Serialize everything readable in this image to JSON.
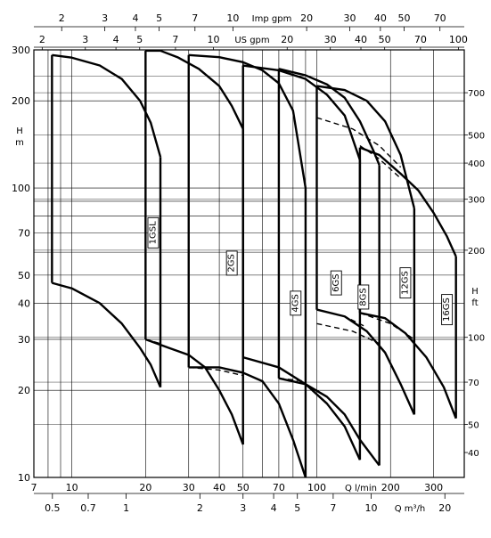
{
  "chart_data": {
    "type": "line",
    "title": "",
    "scale": "log-log",
    "grid": true,
    "left_axis": {
      "label_lines": [
        "H",
        "m"
      ],
      "range": [
        10,
        300
      ],
      "ticks": [
        {
          "v": 10,
          "t": "10"
        },
        {
          "v": 20,
          "t": "20"
        },
        {
          "v": 30,
          "t": "30"
        },
        {
          "v": 40,
          "t": "40"
        },
        {
          "v": 50,
          "t": "50"
        },
        {
          "v": 70,
          "t": "70"
        },
        {
          "v": 100,
          "t": "100"
        },
        {
          "v": 200,
          "t": "200"
        },
        {
          "v": 300,
          "t": "300"
        }
      ]
    },
    "right_axis": {
      "label_lines": [
        "H",
        "ft"
      ],
      "ticks": [
        {
          "v": 40,
          "t": "40"
        },
        {
          "v": 50,
          "t": "50"
        },
        {
          "v": 70,
          "t": "70"
        },
        {
          "v": 100,
          "t": "100"
        },
        {
          "v": 200,
          "t": "200"
        },
        {
          "v": 300,
          "t": "300"
        },
        {
          "v": 400,
          "t": "400"
        },
        {
          "v": 500,
          "t": "500"
        },
        {
          "v": 700,
          "t": "700"
        }
      ]
    },
    "bottom_axis": {
      "unit": "Q l/min",
      "range": [
        7,
        400
      ],
      "ticks": [
        {
          "v": 7,
          "t": "7"
        },
        {
          "v": 10,
          "t": "10"
        },
        {
          "v": 20,
          "t": "20"
        },
        {
          "v": 30,
          "t": "30"
        },
        {
          "v": 40,
          "t": "40"
        },
        {
          "v": 50,
          "t": "50"
        },
        {
          "v": 70,
          "t": "70"
        },
        {
          "v": 100,
          "t": "100"
        },
        {
          "v": 200,
          "t": "200"
        },
        {
          "v": 300,
          "t": "300"
        }
      ]
    },
    "bottom_axis_2": {
      "unit": "Q m³/h",
      "ticks": [
        {
          "v": 0.5,
          "t": "0.5"
        },
        {
          "v": 0.7,
          "t": "0.7"
        },
        {
          "v": 1,
          "t": "1"
        },
        {
          "v": 2,
          "t": "2"
        },
        {
          "v": 3,
          "t": "3"
        },
        {
          "v": 4,
          "t": "4"
        },
        {
          "v": 5,
          "t": "5"
        },
        {
          "v": 7,
          "t": "7"
        },
        {
          "v": 10,
          "t": "10"
        },
        {
          "v": 20,
          "t": "20"
        }
      ]
    },
    "top_axis_1": {
      "unit": "Imp gpm",
      "ticks": [
        {
          "v": 2,
          "t": "2"
        },
        {
          "v": 3,
          "t": "3"
        },
        {
          "v": 4,
          "t": "4"
        },
        {
          "v": 5,
          "t": "5"
        },
        {
          "v": 7,
          "t": "7"
        },
        {
          "v": 10,
          "t": "10"
        },
        {
          "v": 20,
          "t": "20"
        },
        {
          "v": 30,
          "t": "30"
        },
        {
          "v": 40,
          "t": "40"
        },
        {
          "v": 50,
          "t": "50"
        },
        {
          "v": 70,
          "t": "70"
        }
      ]
    },
    "top_axis_2": {
      "unit": "US gpm",
      "ticks": [
        {
          "v": 2,
          "t": "2"
        },
        {
          "v": 3,
          "t": "3"
        },
        {
          "v": 4,
          "t": "4"
        },
        {
          "v": 5,
          "t": "5"
        },
        {
          "v": 7,
          "t": "7"
        },
        {
          "v": 10,
          "t": "10"
        },
        {
          "v": 20,
          "t": "20"
        },
        {
          "v": 30,
          "t": "30"
        },
        {
          "v": 40,
          "t": "40"
        },
        {
          "v": 50,
          "t": "50"
        },
        {
          "v": 70,
          "t": "70"
        },
        {
          "v": 100,
          "t": "100"
        }
      ]
    },
    "series": [
      {
        "name": "1GSL",
        "q_min": 8.3,
        "q_max": 23,
        "upper": [
          [
            8.3,
            288
          ],
          [
            10,
            282
          ],
          [
            13,
            265
          ],
          [
            16,
            238
          ],
          [
            19,
            200
          ],
          [
            21,
            168
          ],
          [
            23,
            128
          ]
        ],
        "lower": [
          [
            8.3,
            47
          ],
          [
            10,
            45
          ],
          [
            13,
            40
          ],
          [
            16,
            34
          ],
          [
            19,
            28
          ],
          [
            21,
            24.5
          ],
          [
            23,
            20.5
          ]
        ]
      },
      {
        "name": "2GS",
        "q_min": 20,
        "q_max": 50,
        "upper": [
          [
            20,
            298
          ],
          [
            23,
            298
          ],
          [
            27,
            283
          ],
          [
            33,
            258
          ],
          [
            40,
            225
          ],
          [
            45,
            192
          ],
          [
            50,
            160
          ]
        ],
        "lower": [
          [
            20,
            30
          ],
          [
            25,
            28
          ],
          [
            30,
            26.5
          ],
          [
            35,
            24
          ],
          [
            40,
            20
          ],
          [
            45,
            16.5
          ],
          [
            50,
            13
          ]
        ]
      },
      {
        "name": "4GS",
        "q_min": 30,
        "q_max": 90,
        "upper": [
          [
            30,
            288
          ],
          [
            40,
            283
          ],
          [
            50,
            272
          ],
          [
            60,
            255
          ],
          [
            70,
            230
          ],
          [
            80,
            185
          ],
          [
            90,
            100
          ]
        ],
        "lower": [
          [
            30,
            24
          ],
          [
            40,
            24
          ],
          [
            50,
            23
          ],
          [
            60,
            21.5
          ],
          [
            70,
            18
          ],
          [
            80,
            13.5
          ],
          [
            90,
            10
          ]
        ]
      },
      {
        "name": "6GS",
        "q_min": 50,
        "q_max": 150,
        "upper": [
          [
            50,
            265
          ],
          [
            70,
            255
          ],
          [
            90,
            238
          ],
          [
            110,
            210
          ],
          [
            130,
            178
          ],
          [
            150,
            125
          ]
        ],
        "lower": [
          [
            50,
            26
          ],
          [
            70,
            24
          ],
          [
            90,
            21
          ],
          [
            110,
            18
          ],
          [
            130,
            15
          ],
          [
            150,
            11.5
          ]
        ]
      },
      {
        "name": "8GS",
        "q_min": 70,
        "q_max": 180,
        "upper": [
          [
            70,
            258
          ],
          [
            90,
            245
          ],
          [
            110,
            228
          ],
          [
            130,
            205
          ],
          [
            150,
            170
          ],
          [
            170,
            135
          ],
          [
            180,
            120
          ]
        ],
        "lower": [
          [
            70,
            22
          ],
          [
            90,
            21
          ],
          [
            110,
            19
          ],
          [
            130,
            16.5
          ],
          [
            150,
            13.5
          ],
          [
            180,
            11
          ]
        ]
      },
      {
        "name": "12GS",
        "q_min": 100,
        "q_max": 250,
        "upper": [
          [
            100,
            225
          ],
          [
            130,
            218
          ],
          [
            160,
            200
          ],
          [
            190,
            170
          ],
          [
            220,
            130
          ],
          [
            250,
            85
          ]
        ],
        "lower": [
          [
            100,
            38
          ],
          [
            130,
            36
          ],
          [
            160,
            32
          ],
          [
            190,
            27
          ],
          [
            220,
            21
          ],
          [
            250,
            16.5
          ]
        ]
      },
      {
        "name": "16GS",
        "q_min": 150,
        "q_max": 370,
        "upper": [
          [
            150,
            138
          ],
          [
            180,
            130
          ],
          [
            220,
            112
          ],
          [
            260,
            98
          ],
          [
            300,
            82
          ],
          [
            340,
            68
          ],
          [
            370,
            58
          ]
        ],
        "lower": [
          [
            150,
            37
          ],
          [
            190,
            35.5
          ],
          [
            230,
            31.5
          ],
          [
            280,
            26
          ],
          [
            330,
            20.5
          ],
          [
            370,
            16
          ]
        ]
      }
    ],
    "boundaries": [
      {
        "from": "1GSL",
        "upper": [
          [
            20,
            160
          ],
          [
            20,
            30
          ]
        ],
        "lower": [
          [
            20,
            30
          ],
          [
            23,
            29
          ]
        ]
      },
      {
        "from": "2GS",
        "upper": [
          [
            30,
            280
          ],
          [
            30,
            24
          ]
        ],
        "lower": [
          [
            30,
            24
          ],
          [
            40,
            23.5
          ],
          [
            50,
            22.5
          ]
        ]
      },
      {
        "from": "4GS",
        "upper": [
          [
            50,
            270
          ],
          [
            50,
            26
          ]
        ],
        "lower": [
          [
            50,
            26
          ],
          [
            65,
            24.5
          ]
        ]
      },
      {
        "from": "6GS",
        "upper": [
          [
            70,
            250
          ],
          [
            70,
            22
          ]
        ],
        "lower": [
          [
            70,
            22
          ],
          [
            90,
            21.5
          ]
        ]
      },
      {
        "from": "8GS",
        "upper": [
          [
            100,
            210
          ],
          [
            100,
            38
          ]
        ],
        "lower": [
          [
            100,
            38
          ],
          [
            130,
            36
          ],
          [
            160,
            33
          ]
        ]
      },
      {
        "from": "12GS",
        "upper": [
          [
            100,
            175
          ],
          [
            140,
            160
          ],
          [
            180,
            140
          ],
          [
            220,
            118
          ]
        ],
        "lower": [
          [
            100,
            34
          ],
          [
            140,
            32
          ],
          [
            180,
            29
          ]
        ]
      },
      {
        "from": "16GS",
        "upper": [
          [
            150,
            140
          ],
          [
            180,
            126
          ],
          [
            220,
            108
          ]
        ],
        "lower": [
          [
            150,
            37
          ],
          [
            200,
            34
          ],
          [
            250,
            30
          ]
        ]
      }
    ]
  }
}
